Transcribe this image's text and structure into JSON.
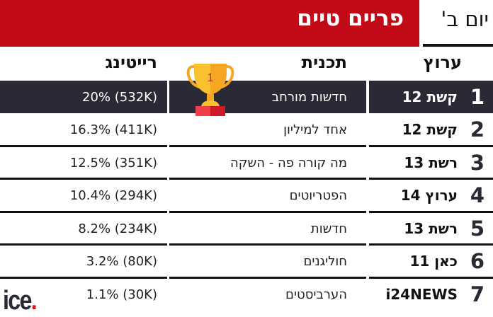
{
  "header": {
    "title": "פריים טיים",
    "day": "יום ב'"
  },
  "columns": {
    "channel": "ערוץ",
    "program": "תכנית",
    "rating": "רייטינג"
  },
  "rows": [
    {
      "rank": "1",
      "channel": "קשת 12",
      "program": "חדשות מורחב",
      "rating": "(532K) 20%"
    },
    {
      "rank": "2",
      "channel": "קשת 12",
      "program": "אחד למיליון",
      "rating": "(411K) 16.3%"
    },
    {
      "rank": "3",
      "channel": "רשת 13",
      "program": "מה קורה פה - השקה",
      "rating": "(351K) 12.5%"
    },
    {
      "rank": "4",
      "channel": "ערוץ 14",
      "program": "הפטריוטים",
      "rating": "(294K) 10.4%"
    },
    {
      "rank": "5",
      "channel": "רשת 13",
      "program": "חדשות",
      "rating": "(234K) 8.2%"
    },
    {
      "rank": "6",
      "channel": "כאן 11",
      "program": "חוליגנים",
      "rating": "(80K) 3.2%"
    },
    {
      "rank": "7",
      "channel": "i24NEWS",
      "program": "הערביסטים",
      "rating": "(30K) 1.1%"
    }
  ],
  "trophy": {
    "number": "1"
  },
  "logo": {
    "text": "ice",
    "dot": "."
  },
  "colors": {
    "brand_red": "#c20a17",
    "dark_row": "#2a2a36"
  }
}
